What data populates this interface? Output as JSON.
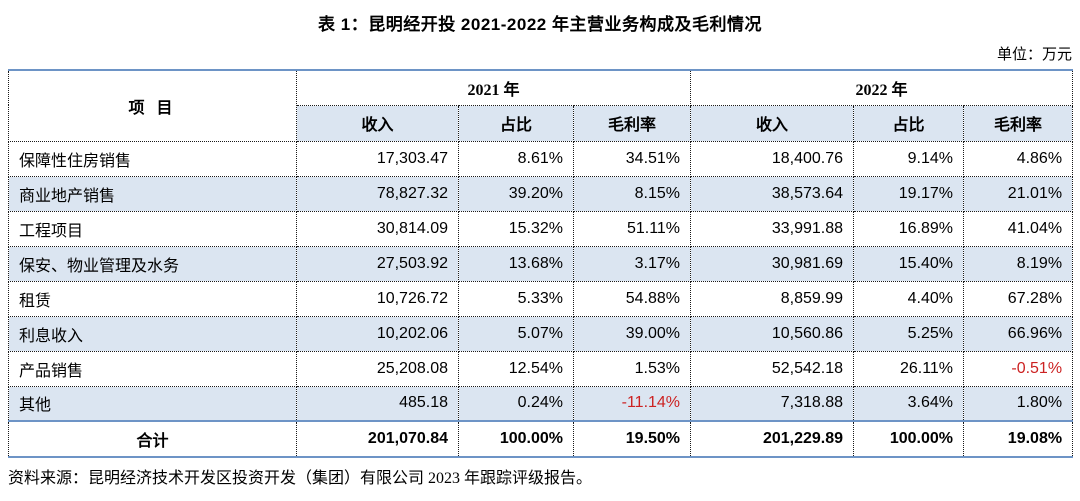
{
  "page": {
    "title": "表 1：昆明经开投 2021-2022 年主营业务构成及毛利情况",
    "unit_label": "单位：万元",
    "source_note": "资料来源：昆明经济技术开发区投资开发（集团）有限公司 2023 年跟踪评级报告。"
  },
  "colors": {
    "accent_blue_border": "#6d94c6",
    "band_fill": "#dbe5f1",
    "negative_red": "#cc2222",
    "text": "#000000"
  },
  "table": {
    "header": {
      "item": "项 目",
      "groups": [
        {
          "label": "2021 年"
        },
        {
          "label": "2022 年"
        }
      ],
      "subheaders": [
        "收入",
        "占比",
        "毛利率"
      ]
    },
    "rows": [
      {
        "label": "保障性住房销售",
        "y2021": [
          "17,303.47",
          "8.61%",
          "34.51%"
        ],
        "y2022": [
          "18,400.76",
          "9.14%",
          "4.86%"
        ]
      },
      {
        "label": "商业地产销售",
        "y2021": [
          "78,827.32",
          "39.20%",
          "8.15%"
        ],
        "y2022": [
          "38,573.64",
          "19.17%",
          "21.01%"
        ]
      },
      {
        "label": "工程项目",
        "y2021": [
          "30,814.09",
          "15.32%",
          "51.11%"
        ],
        "y2022": [
          "33,991.88",
          "16.89%",
          "41.04%"
        ]
      },
      {
        "label": "保安、物业管理及水务",
        "y2021": [
          "27,503.92",
          "13.68%",
          "3.17%"
        ],
        "y2022": [
          "30,981.69",
          "15.40%",
          "8.19%"
        ]
      },
      {
        "label": "租赁",
        "y2021": [
          "10,726.72",
          "5.33%",
          "54.88%"
        ],
        "y2022": [
          "8,859.99",
          "4.40%",
          "67.28%"
        ]
      },
      {
        "label": "利息收入",
        "y2021": [
          "10,202.06",
          "5.07%",
          "39.00%"
        ],
        "y2022": [
          "10,560.86",
          "5.25%",
          "66.96%"
        ]
      },
      {
        "label": "产品销售",
        "y2021": [
          "25,208.08",
          "12.54%",
          "1.53%"
        ],
        "y2022": [
          "52,542.18",
          "26.11%",
          "-0.51%"
        ]
      },
      {
        "label": "其他",
        "y2021": [
          "485.18",
          "0.24%",
          "-11.14%"
        ],
        "y2022": [
          "7,318.88",
          "3.64%",
          "1.80%"
        ]
      }
    ],
    "total": {
      "label": "合计",
      "y2021": [
        "201,070.84",
        "100.00%",
        "19.50%"
      ],
      "y2022": [
        "201,229.89",
        "100.00%",
        "19.08%"
      ]
    }
  }
}
